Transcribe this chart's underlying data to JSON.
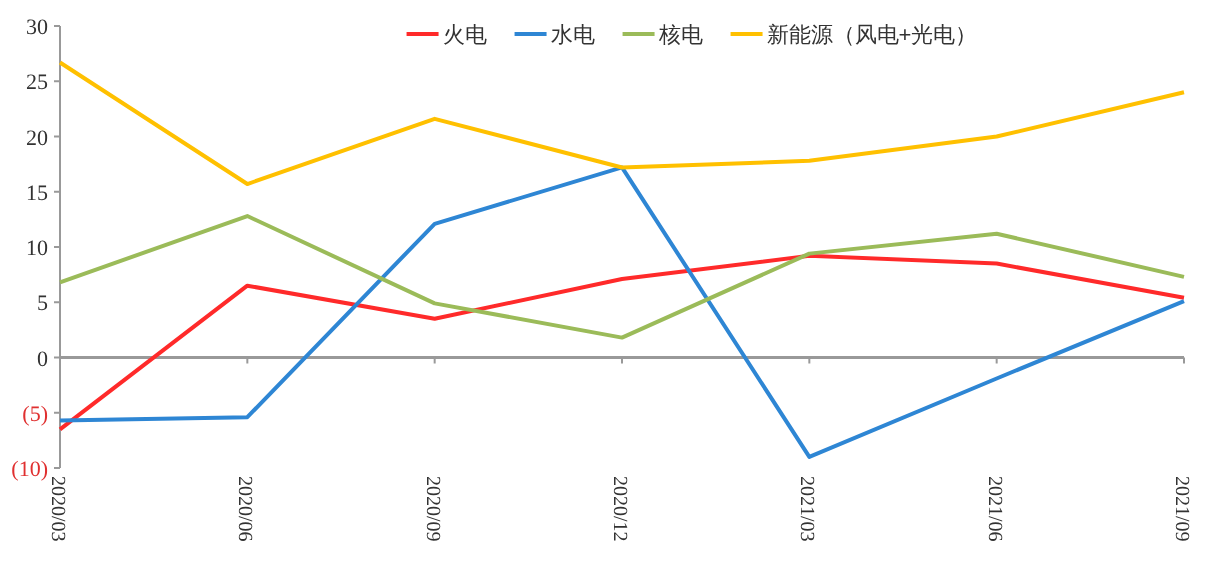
{
  "chart_data": {
    "type": "line",
    "categories": [
      "2020/03",
      "2020/06",
      "2020/09",
      "2020/12",
      "2021/03",
      "2021/06",
      "2021/09"
    ],
    "series": [
      {
        "name": "火电",
        "color": "#ff2a2a",
        "values": [
          -6.5,
          6.5,
          3.5,
          7.1,
          9.2,
          8.5,
          5.4
        ]
      },
      {
        "name": "水电",
        "color": "#2e86d4",
        "values": [
          -5.7,
          -5.4,
          12.1,
          17.2,
          -9.0,
          -1.9,
          5.1
        ]
      },
      {
        "name": "核电",
        "color": "#9bbb59",
        "values": [
          6.8,
          12.8,
          4.9,
          1.8,
          9.4,
          11.2,
          7.3
        ]
      },
      {
        "name": "新能源（风电+光电）",
        "color": "#ffc000",
        "values": [
          26.7,
          15.7,
          21.6,
          17.2,
          17.8,
          20.0,
          24.0
        ]
      }
    ],
    "ylim": [
      -10,
      30
    ],
    "yticks": [
      {
        "value": -10,
        "label": "(10)"
      },
      {
        "value": -5,
        "label": "(5)"
      },
      0,
      5,
      10,
      15,
      20,
      25,
      30
    ],
    "legend": "top",
    "marker": "none",
    "line_style": "solid"
  }
}
